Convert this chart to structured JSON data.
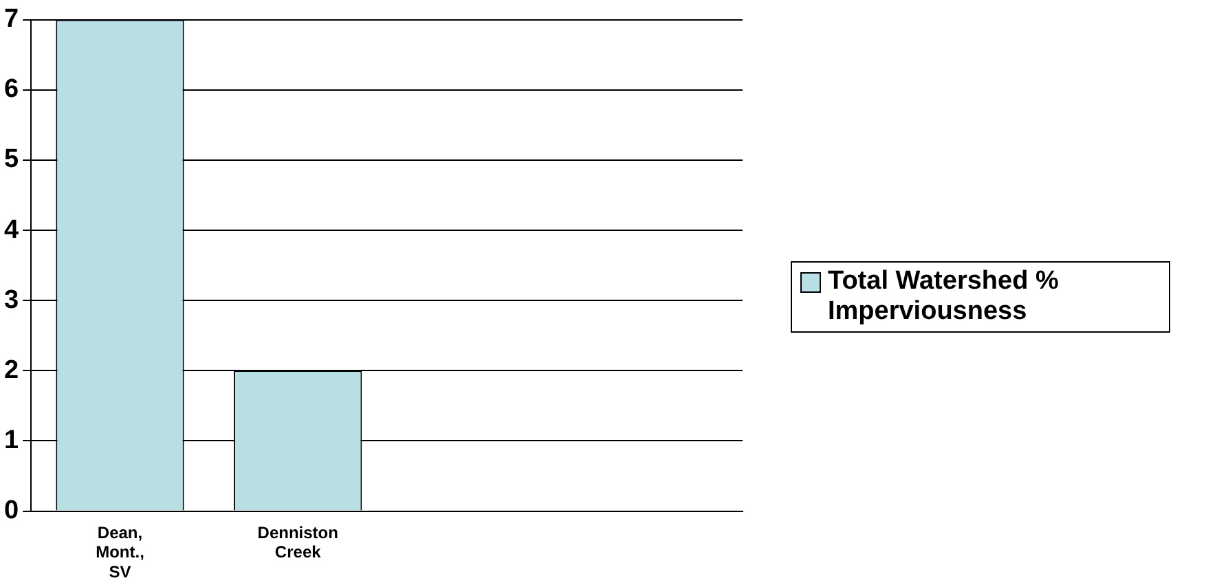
{
  "chart_data": {
    "type": "bar",
    "categories": [
      "Dean, Mont., SV",
      "Denniston Creek",
      null,
      null
    ],
    "series": [
      {
        "name": "Total Watershed % Imperviousness",
        "color": "#b8e0e4",
        "values": [
          7,
          2,
          null,
          null
        ]
      }
    ],
    "ylim": [
      0,
      7
    ],
    "yticks": [
      0,
      1,
      2,
      3,
      4,
      5,
      6,
      7
    ],
    "grid": "y",
    "legend": "right"
  }
}
